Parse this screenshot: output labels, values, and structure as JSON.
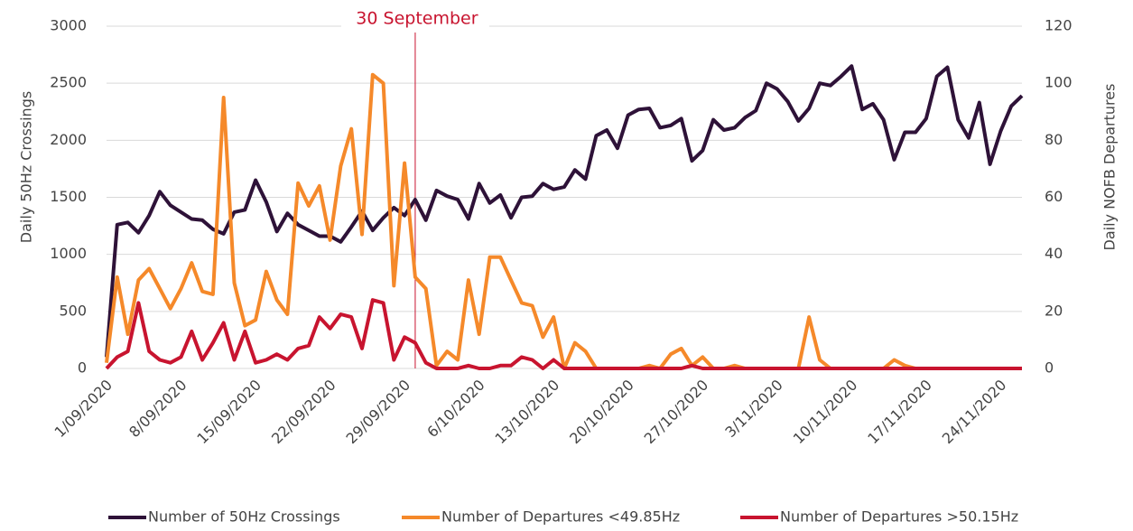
{
  "chart_data": {
    "type": "line",
    "annotation": {
      "text": "30 September",
      "x": 29
    },
    "y_label": "Daily 50Hz Crossings",
    "y2_label": "Daily  NOFB Departures",
    "categories": [
      "1/09/2020",
      null,
      null,
      null,
      null,
      null,
      null,
      "8/09/2020",
      null,
      null,
      null,
      null,
      null,
      null,
      "15/09/2020",
      null,
      null,
      null,
      null,
      null,
      null,
      "22/09/2020",
      null,
      null,
      null,
      null,
      null,
      null,
      "29/09/2020",
      null,
      null,
      null,
      null,
      null,
      null,
      "6/10/2020",
      null,
      null,
      null,
      null,
      null,
      null,
      "13/10/2020",
      null,
      null,
      null,
      null,
      null,
      null,
      "20/10/2020",
      null,
      null,
      null,
      null,
      null,
      null,
      "27/10/2020",
      null,
      null,
      null,
      null,
      null,
      null,
      "3/11/2020",
      null,
      null,
      null,
      null,
      null,
      null,
      "10/11/2020",
      null,
      null,
      null,
      null,
      null,
      null,
      "17/11/2020",
      null,
      null,
      null,
      null,
      null,
      null,
      "24/11/2020",
      null,
      null
    ],
    "series": [
      {
        "name": "Number of 50Hz Crossings",
        "color": "#2e1238",
        "axis": "y",
        "values": [
          100,
          1260,
          1280,
          1190,
          1340,
          1550,
          1430,
          1370,
          1310,
          1300,
          1220,
          1180,
          1370,
          1390,
          1650,
          1460,
          1200,
          1360,
          1260,
          1210,
          1160,
          1160,
          1110,
          1240,
          1380,
          1210,
          1320,
          1410,
          1340,
          1480,
          1300,
          1560,
          1510,
          1480,
          1310,
          1620,
          1450,
          1520,
          1320,
          1500,
          1510,
          1620,
          1570,
          1590,
          1740,
          1660,
          2040,
          2090,
          1930,
          2220,
          2270,
          2280,
          2110,
          2130,
          2190,
          1820,
          1910,
          2180,
          2090,
          2110,
          2200,
          2260,
          2500,
          2450,
          2340,
          2170,
          2280,
          2500,
          2480,
          2560,
          2650,
          2270,
          2320,
          2180,
          1830,
          2070,
          2070,
          2190,
          2560,
          2640,
          2180,
          2020,
          2330,
          1790,
          2080,
          2300,
          2390
        ]
      },
      {
        "name": "Number of Departures <49.85Hz",
        "color": "#f5892a",
        "axis": "y2",
        "values": [
          2,
          32,
          12,
          31,
          35,
          28,
          21,
          28,
          37,
          27,
          26,
          95,
          30,
          15,
          17,
          34,
          24,
          19,
          65,
          57,
          64,
          45,
          71,
          84,
          47,
          103,
          100,
          29,
          72,
          32,
          28,
          1,
          6,
          3,
          31,
          12,
          39,
          39,
          31,
          23,
          22,
          11,
          18,
          0,
          9,
          6,
          0,
          0,
          0,
          0,
          0,
          1,
          0,
          5,
          7,
          1,
          4,
          0,
          0,
          1,
          0,
          0,
          0,
          0,
          0,
          0,
          18,
          3,
          0,
          0,
          0,
          0,
          0,
          0,
          3,
          1,
          0,
          0,
          0,
          0,
          0,
          0,
          0,
          0,
          0,
          0,
          0
        ]
      },
      {
        "name": "Number of Departures >50.15Hz",
        "color": "#c8142f",
        "axis": "y2",
        "values": [
          0,
          4,
          6,
          23,
          6,
          3,
          2,
          4,
          13,
          3,
          9,
          16,
          3,
          13,
          2,
          3,
          5,
          3,
          7,
          8,
          18,
          14,
          19,
          18,
          7,
          24,
          23,
          3,
          11,
          9,
          2,
          0,
          0,
          0,
          1,
          0,
          0,
          1,
          1,
          4,
          3,
          0,
          3,
          0,
          0,
          0,
          0,
          0,
          0,
          0,
          0,
          0,
          0,
          0,
          0,
          1,
          0,
          0,
          0,
          0,
          0,
          0,
          0,
          0,
          0,
          0,
          0,
          0,
          0,
          0,
          0,
          0,
          0,
          0,
          0,
          0,
          0,
          0,
          0,
          0,
          0,
          0,
          0,
          0,
          0,
          0,
          0
        ]
      }
    ],
    "ylim": [
      0,
      3000
    ],
    "yticks": [
      0,
      500,
      1000,
      1500,
      2000,
      2500,
      3000
    ],
    "y2lim": [
      0,
      120
    ],
    "y2ticks": [
      0,
      20,
      40,
      60,
      80,
      100,
      120
    ],
    "grid": true
  }
}
